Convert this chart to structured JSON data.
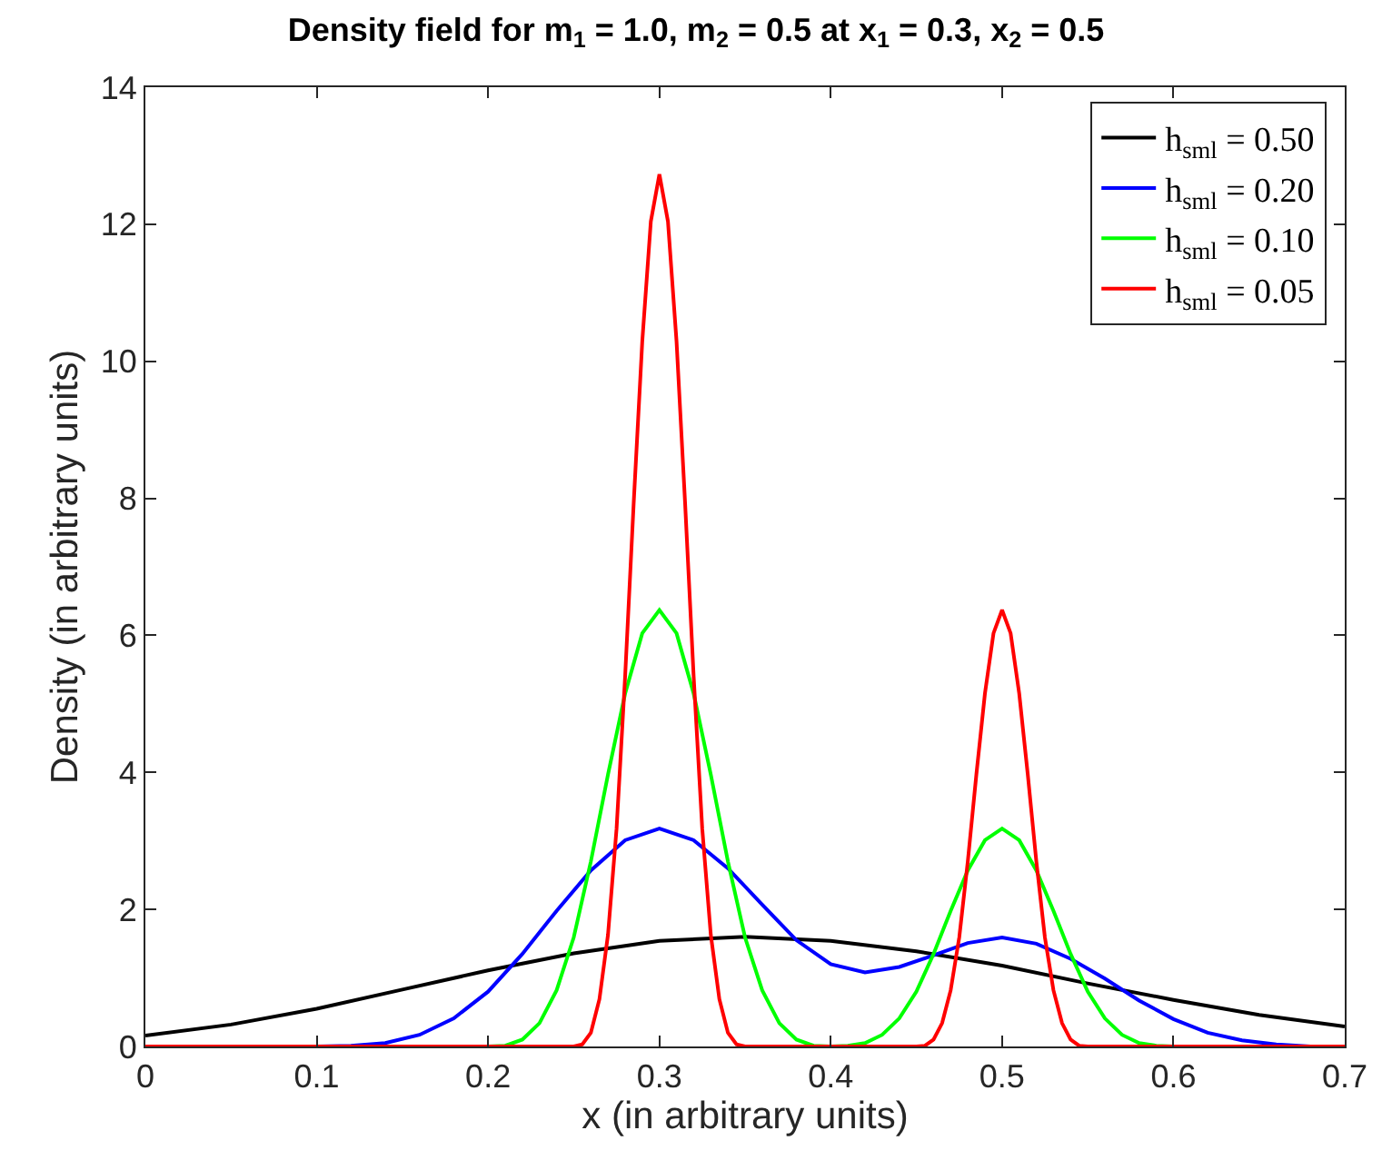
{
  "chart_data": {
    "type": "line",
    "title": "Density field for m$_{1}$ = 1.0, m$_{2}$ = 0.5 at x$_{1}$ = 0.3, x$_{2}$ = 0.5",
    "xlabel": "x (in arbitrary units)",
    "ylabel": "Density (in arbitrary units)",
    "xlim": [
      0,
      0.7
    ],
    "xticks": [
      0,
      0.1,
      0.2,
      0.3,
      0.4,
      0.5,
      0.6,
      0.7
    ],
    "ylim": [
      0,
      14
    ],
    "yticks": [
      0,
      2,
      4,
      6,
      8,
      10,
      12,
      14
    ],
    "grid": false,
    "legend": "top right",
    "marker": "none",
    "line_style": "solid",
    "series": [
      {
        "name": "h$_{sml}$ = 0.50",
        "color": "#000000",
        "x": [
          0,
          0.05,
          0.1,
          0.15,
          0.2,
          0.25,
          0.3,
          0.35,
          0.4,
          0.45,
          0.5,
          0.55,
          0.6,
          0.65,
          0.7
        ],
        "values": [
          0.16,
          0.32,
          0.55,
          0.83,
          1.11,
          1.36,
          1.54,
          1.6,
          1.54,
          1.39,
          1.18,
          0.92,
          0.68,
          0.46,
          0.29
        ]
      },
      {
        "name": "h$_{sml}$ = 0.20",
        "color": "#0000ff",
        "x": [
          0.08,
          0.1,
          0.12,
          0.14,
          0.16,
          0.18,
          0.2,
          0.22,
          0.24,
          0.26,
          0.28,
          0.3,
          0.32,
          0.34,
          0.36,
          0.38,
          0.4,
          0.42,
          0.44,
          0.46,
          0.48,
          0.5,
          0.52,
          0.54,
          0.56,
          0.58,
          0.6,
          0.62,
          0.64,
          0.66,
          0.68,
          0.7
        ],
        "values": [
          0,
          0,
          0.01,
          0.05,
          0.17,
          0.41,
          0.8,
          1.35,
          1.98,
          2.57,
          3.01,
          3.18,
          3.01,
          2.6,
          2.07,
          1.55,
          1.2,
          1.08,
          1.16,
          1.33,
          1.51,
          1.59,
          1.5,
          1.28,
          0.99,
          0.67,
          0.4,
          0.2,
          0.09,
          0.03,
          0,
          0
        ]
      },
      {
        "name": "h$_{sml}$ = 0.10",
        "color": "#00ff00",
        "x": [
          0,
          0.2,
          0.21,
          0.22,
          0.23,
          0.24,
          0.25,
          0.26,
          0.27,
          0.28,
          0.29,
          0.3,
          0.31,
          0.32,
          0.33,
          0.34,
          0.35,
          0.36,
          0.37,
          0.38,
          0.39,
          0.4,
          0.41,
          0.42,
          0.43,
          0.44,
          0.45,
          0.46,
          0.47,
          0.48,
          0.49,
          0.5,
          0.51,
          0.52,
          0.53,
          0.54,
          0.55,
          0.56,
          0.57,
          0.58,
          0.59,
          0.6,
          0.7
        ],
        "values": [
          0,
          0,
          0.01,
          0.1,
          0.34,
          0.82,
          1.59,
          2.7,
          3.97,
          5.15,
          6.03,
          6.37,
          6.03,
          5.15,
          3.97,
          2.7,
          1.59,
          0.82,
          0.34,
          0.1,
          0.01,
          0,
          0.01,
          0.05,
          0.17,
          0.41,
          0.8,
          1.35,
          1.98,
          2.57,
          3.01,
          3.18,
          3.01,
          2.57,
          1.98,
          1.35,
          0.8,
          0.41,
          0.17,
          0.05,
          0.01,
          0,
          0
        ]
      },
      {
        "name": "h$_{sml}$ = 0.05",
        "color": "#ff0000",
        "x": [
          0,
          0.25,
          0.255,
          0.26,
          0.265,
          0.27,
          0.275,
          0.28,
          0.285,
          0.29,
          0.295,
          0.3,
          0.305,
          0.31,
          0.315,
          0.32,
          0.325,
          0.33,
          0.335,
          0.34,
          0.345,
          0.35,
          0.45,
          0.455,
          0.46,
          0.465,
          0.47,
          0.475,
          0.48,
          0.485,
          0.49,
          0.495,
          0.5,
          0.505,
          0.51,
          0.515,
          0.52,
          0.525,
          0.53,
          0.535,
          0.54,
          0.545,
          0.55,
          0.7
        ],
        "values": [
          0,
          0,
          0.03,
          0.2,
          0.69,
          1.63,
          3.18,
          5.4,
          7.93,
          10.29,
          12.04,
          12.73,
          12.04,
          10.29,
          7.93,
          5.4,
          3.18,
          1.63,
          0.69,
          0.2,
          0.03,
          0,
          0,
          0.01,
          0.1,
          0.34,
          0.82,
          1.59,
          2.7,
          3.97,
          5.15,
          6.03,
          6.37,
          6.03,
          5.15,
          3.97,
          2.7,
          1.59,
          0.82,
          0.34,
          0.1,
          0.01,
          0,
          0
        ]
      }
    ]
  }
}
